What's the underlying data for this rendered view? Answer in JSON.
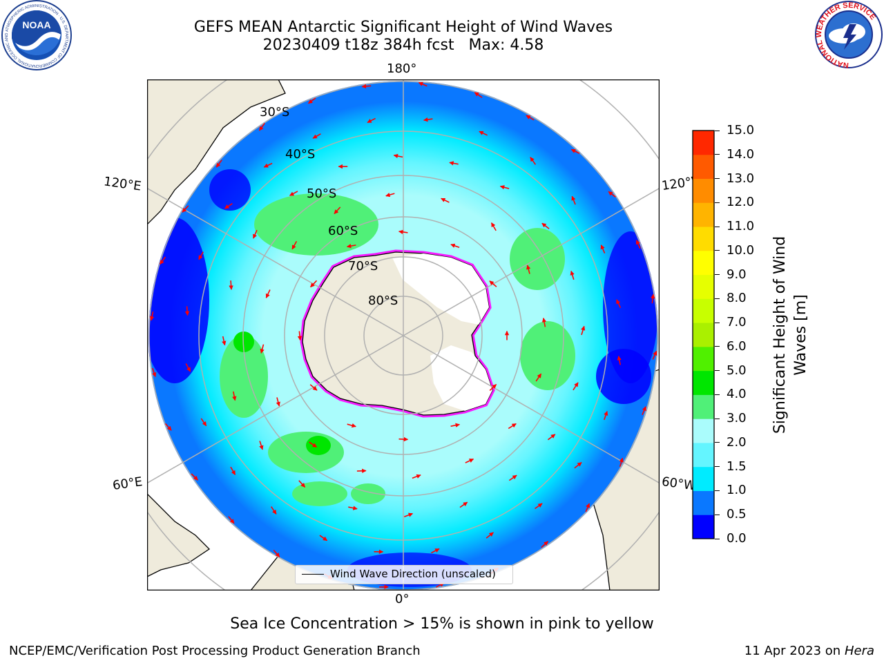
{
  "header": {
    "title_line1": "GEFS MEAN Antarctic Significant Height of Wind Waves",
    "title_line2": "20230409 t18z 384h fcst   Max: 4.58"
  },
  "logos": {
    "noaa_text": "NOAA",
    "noaa_ring_text": "NATIONAL OCEANIC AND ATMOSPHERIC ADMINISTRATION · U.S. DEPARTMENT OF COMMERCE",
    "nws_ring_text": "NATIONAL WEATHER SERVICE"
  },
  "map": {
    "projection": "south-polar-stereographic",
    "longitude_labels": {
      "top": "180°",
      "bottom": "0°",
      "upper_left": "120°E",
      "upper_right": "120°W",
      "lower_left": "60°E",
      "lower_right": "60°W"
    },
    "latitude_labels": [
      "30°S",
      "40°S",
      "50°S",
      "60°S",
      "70°S",
      "80°S"
    ],
    "legend_label": "Wind Wave Direction (unscaled)",
    "sea_ice_note": "Sea Ice Concentration > 15% is shown in pink to yellow"
  },
  "colorbar": {
    "label": "Significant Height of Wind Waves [m]",
    "ticks": [
      "0.0",
      "0.5",
      "1.0",
      "1.5",
      "2.0",
      "3.0",
      "4.0",
      "5.0",
      "6.0",
      "7.0",
      "8.0",
      "9.0",
      "10.0",
      "11.0",
      "12.0",
      "13.0",
      "14.0",
      "15.0"
    ],
    "colors": [
      "#0000ff",
      "#0a78ff",
      "#00ebff",
      "#64f5ff",
      "#aafcfc",
      "#50f078",
      "#00e600",
      "#50f000",
      "#aaf000",
      "#c8ff00",
      "#e6ff00",
      "#ffff00",
      "#ffdc00",
      "#ffb400",
      "#ff8c00",
      "#ff5a00",
      "#ff2800"
    ],
    "land_color": "#efebdc",
    "arrow_color": "#ff0000"
  },
  "footer": {
    "left": "NCEP/EMC/Verification Post Processing Product Generation Branch",
    "right_prefix": "11 Apr 2023 on ",
    "right_machine": "Hera"
  }
}
